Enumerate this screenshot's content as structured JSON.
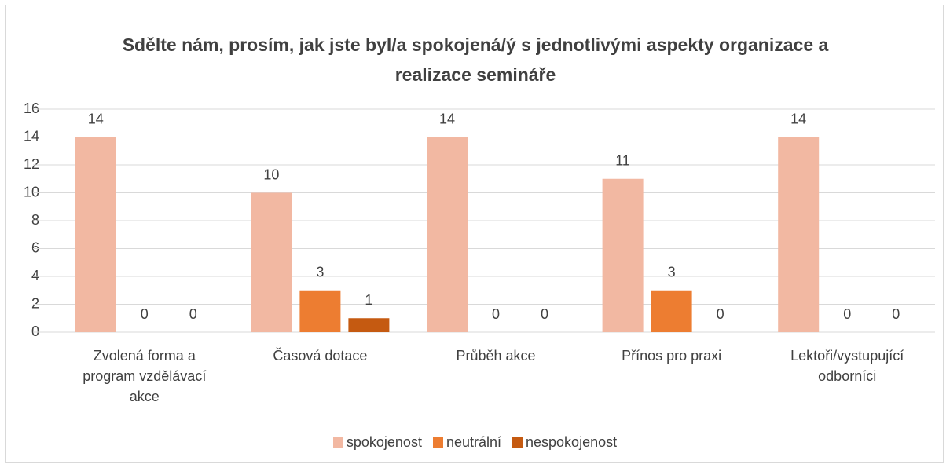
{
  "chart_data": {
    "type": "bar",
    "title": "Sdělte nám, prosím, jak jste byl/a spokojená/ý s jednotlivými aspekty organizace a realizace semináře",
    "categories": [
      "Zvolená forma a program vzdělávací akce",
      "Časová dotace",
      "Průběh akce",
      "Přínos pro praxi",
      "Lektoři/vystupující odborníci"
    ],
    "series": [
      {
        "name": "spokojenost",
        "color": "#f2b8a2",
        "values": [
          14,
          10,
          14,
          11,
          14
        ]
      },
      {
        "name": "neutrální",
        "color": "#ed7d31",
        "values": [
          0,
          3,
          0,
          3,
          0
        ]
      },
      {
        "name": "nespokojenost",
        "color": "#c55a11",
        "values": [
          0,
          1,
          0,
          0,
          0
        ]
      }
    ],
    "ylim": [
      0,
      16
    ],
    "yticks": [
      0,
      2,
      4,
      6,
      8,
      10,
      12,
      14,
      16
    ],
    "grid": true,
    "legend": "bottom"
  }
}
